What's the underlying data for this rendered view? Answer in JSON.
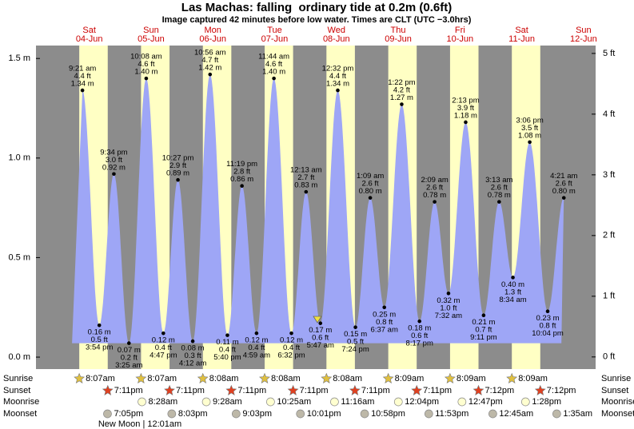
{
  "chart_data": {
    "type": "tide",
    "title": "Las Machas: falling  ordinary tide at 0.2m (0.6ft)",
    "subtitle": "Image captured 42 minutes before low water. Times are CLT (UTC −3.0hrs)",
    "days": [
      {
        "weekday": "Sat",
        "date": "04-Jun"
      },
      {
        "weekday": "Sun",
        "date": "05-Jun"
      },
      {
        "weekday": "Mon",
        "date": "06-Jun"
      },
      {
        "weekday": "Tue",
        "date": "07-Jun"
      },
      {
        "weekday": "Wed",
        "date": "08-Jun"
      },
      {
        "weekday": "Thu",
        "date": "09-Jun"
      },
      {
        "weekday": "Fri",
        "date": "10-Jun"
      },
      {
        "weekday": "Sat",
        "date": "11-Jun"
      },
      {
        "weekday": "Sun",
        "date": "12-Jun"
      }
    ],
    "ylim": [
      -0.06,
      1.565
    ],
    "yticks": [
      {
        "value": 0,
        "label": "0.0 m"
      },
      {
        "value": 0.5,
        "label": "0.5 m"
      },
      {
        "value": 1,
        "label": "1.0 m"
      },
      {
        "value": 1.5,
        "label": "1.5 m"
      }
    ],
    "y2lim": [
      -0.2,
      5.13
    ],
    "y2ticks": [
      {
        "value": 0,
        "label": "0 ft"
      },
      {
        "value": 1,
        "label": "1 ft"
      },
      {
        "value": 2,
        "label": "2 ft"
      },
      {
        "value": 3,
        "label": "3 ft"
      },
      {
        "value": 4,
        "label": "4 ft"
      },
      {
        "value": 5,
        "label": "5 ft"
      }
    ],
    "tides": [
      [
        {
          "time": "9:21 am",
          "value": 1.34,
          "value_label": "1.34 m",
          "ft_label": "4.4 ft"
        },
        {
          "time": "3:54 pm",
          "value": 0.16,
          "value_label": "0.16 m",
          "ft_label": "0.5 ft"
        },
        {
          "time": "9:34 pm",
          "value": 0.92,
          "value_label": "0.92 m",
          "ft_label": "3.0 ft"
        }
      ],
      [
        {
          "time": "3:25 am",
          "value": 0.07,
          "value_label": "0.07 m",
          "ft_label": "0.2 ft"
        },
        {
          "time": "10:08 am",
          "value": 1.4,
          "value_label": "1.40 m",
          "ft_label": "4.6 ft"
        },
        {
          "time": "4:47 pm",
          "value": 0.12,
          "value_label": "0.12 m",
          "ft_label": "0.4 ft"
        },
        {
          "time": "10:27 pm",
          "value": 0.89,
          "value_label": "0.89 m",
          "ft_label": "2.9 ft"
        }
      ],
      [
        {
          "time": "4:12 am",
          "value": 0.08,
          "value_label": "0.08 m",
          "ft_label": "0.3 ft"
        },
        {
          "time": "10:56 am",
          "value": 1.42,
          "value_label": "1.42 m",
          "ft_label": "4.7 ft"
        },
        {
          "time": "5:40 pm",
          "value": 0.11,
          "value_label": "0.11 m",
          "ft_label": "0.4 ft"
        },
        {
          "time": "11:19 pm",
          "value": 0.86,
          "value_label": "0.86 m",
          "ft_label": "2.8 ft"
        }
      ],
      [
        {
          "time": "4:59 am",
          "value": 0.12,
          "value_label": "0.12 m",
          "ft_label": "0.4 ft"
        },
        {
          "time": "11:44 am",
          "value": 1.4,
          "value_label": "1.40 m",
          "ft_label": "4.6 ft"
        },
        {
          "time": "6:32 pm",
          "value": 0.12,
          "value_label": "0.12 m",
          "ft_label": "0.4 ft"
        }
      ],
      [
        {
          "time": "12:13 am",
          "value": 0.83,
          "value_label": "0.83 m",
          "ft_label": "2.7 ft"
        },
        {
          "time": "5:47 am",
          "value": 0.17,
          "value_label": "0.17 m",
          "ft_label": "0.6 ft"
        },
        {
          "time": "12:32 pm",
          "value": 1.34,
          "value_label": "1.34 m",
          "ft_label": "4.4 ft"
        },
        {
          "time": "7:24 pm",
          "value": 0.15,
          "value_label": "0.15 m",
          "ft_label": "0.5 ft"
        }
      ],
      [
        {
          "time": "1:09 am",
          "value": 0.8,
          "value_label": "0.80 m",
          "ft_label": "2.6 ft"
        },
        {
          "time": "6:37 am",
          "value": 0.25,
          "value_label": "0.25 m",
          "ft_label": "0.8 ft"
        },
        {
          "time": "1:22 pm",
          "value": 1.27,
          "value_label": "1.27 m",
          "ft_label": "4.2 ft"
        },
        {
          "time": "8:17 pm",
          "value": 0.18,
          "value_label": "0.18 m",
          "ft_label": "0.6 ft"
        }
      ],
      [
        {
          "time": "2:09 am",
          "value": 0.78,
          "value_label": "0.78 m",
          "ft_label": "2.6 ft"
        },
        {
          "time": "7:32 am",
          "value": 0.32,
          "value_label": "0.32 m",
          "ft_label": "1.0 ft"
        },
        {
          "time": "2:13 pm",
          "value": 1.18,
          "value_label": "1.18 m",
          "ft_label": "3.9 ft"
        },
        {
          "time": "9:11 pm",
          "value": 0.21,
          "value_label": "0.21 m",
          "ft_label": "0.7 ft"
        }
      ],
      [
        {
          "time": "3:13 am",
          "value": 0.78,
          "value_label": "0.78 m",
          "ft_label": "2.6 ft"
        },
        {
          "time": "8:34 am",
          "value": 0.4,
          "value_label": "0.40 m",
          "ft_label": "1.3 ft"
        },
        {
          "time": "3:06 pm",
          "value": 1.08,
          "value_label": "1.08 m",
          "ft_label": "3.5 ft"
        },
        {
          "time": "10:04 pm",
          "value": 0.23,
          "value_label": "0.23 m",
          "ft_label": "0.8 ft"
        }
      ],
      [
        {
          "time": "4:21 am",
          "value": 0.8,
          "value_label": "0.80 m",
          "ft_label": "2.6 ft"
        }
      ]
    ],
    "astro": [
      {
        "name": "Sunrise",
        "times": [
          "8:07am",
          "8:07am",
          "8:08am",
          "8:08am",
          "8:08am",
          "8:09am",
          "8:09am",
          "8:09am",
          null
        ]
      },
      {
        "name": "Sunset",
        "times": [
          "7:11pm",
          "7:11pm",
          "7:11pm",
          "7:11pm",
          "7:11pm",
          "7:11pm",
          "7:12pm",
          "7:12pm",
          null
        ]
      },
      {
        "name": "Moonrise",
        "times": [
          null,
          "8:28am",
          "9:28am",
          "10:25am",
          "11:16am",
          "12:04pm",
          "12:47pm",
          "1:28pm",
          null
        ]
      },
      {
        "name": "Moonset",
        "times": [
          "7:05pm",
          "8:03pm",
          "9:03pm",
          "10:01pm",
          "10:58pm",
          "11:53pm",
          null,
          "12:45am",
          "1:35am"
        ]
      }
    ],
    "moon_phase": "New Moon | 12:01am"
  }
}
